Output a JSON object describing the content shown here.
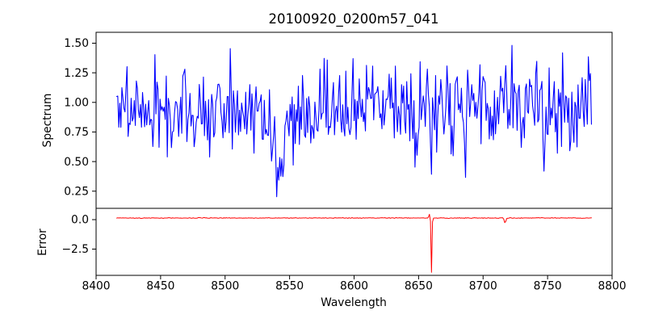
{
  "figure": {
    "title": "20100920_0200m57_041",
    "background": "#ffffff",
    "axis_color": "#000000"
  },
  "chart_data": [
    {
      "id": "spectrum",
      "type": "line",
      "title": "20100920_0200m57_041",
      "ylabel": "Spectrum",
      "color": "#0000ff",
      "legend": "none",
      "grid": false,
      "xlim": [
        8400,
        8800
      ],
      "ylim": [
        0.105,
        1.592
      ],
      "ytick_values": [
        0.25,
        0.5,
        0.75,
        1.0,
        1.25,
        1.5
      ],
      "ytick_labels": [
        "0.25",
        "0.50",
        "0.75",
        "1.00",
        "1.25",
        "1.50"
      ],
      "x_start": 8416,
      "x_end": 8784,
      "n_points": 461,
      "synthesis": {
        "seed": 7,
        "baseline": 0.95,
        "noise_std": 0.175,
        "clip_min": 0.15,
        "clip_max": 1.52,
        "features": [
          {
            "center": 8541,
            "depth": 0.5,
            "width": 3.5,
            "note": "broad noisy absorption dip, minimum ~0.35"
          },
          {
            "center": 8550,
            "depth": 0.1,
            "width": 10,
            "note": "shallow suppressed continuum around the dip"
          },
          {
            "center": 8648,
            "depth": 0.4,
            "width": 1.1,
            "note": "narrow dip to ~0.5"
          },
          {
            "center": 8660,
            "depth": 0.78,
            "width": 0.5,
            "note": "deepest narrow dip to ~0.15"
          },
          {
            "center": 8686,
            "depth": 0.45,
            "width": 1.0,
            "note": "narrow dip to ~0.45"
          },
          {
            "center": 8747,
            "depth": 0.5,
            "width": 1.0,
            "note": "narrow dip to ~0.4"
          }
        ]
      }
    },
    {
      "id": "error",
      "type": "line",
      "ylabel": "Error",
      "xlabel": "Wavelength",
      "color": "#ff0000",
      "legend": "none",
      "grid": false,
      "xlim": [
        8400,
        8800
      ],
      "ylim": [
        -4.73,
        0.96
      ],
      "ytick_values": [
        0,
        -2.5
      ],
      "ytick_labels": [
        "0.0",
        "−2.5"
      ],
      "xtick_values": [
        8400,
        8450,
        8500,
        8550,
        8600,
        8650,
        8700,
        8750,
        8800
      ],
      "xtick_labels": [
        "8400",
        "8450",
        "8500",
        "8550",
        "8600",
        "8650",
        "8700",
        "8750",
        "8800"
      ],
      "x_start": 8416,
      "x_end": 8784,
      "n_points": 461,
      "synthesis": {
        "seed": 99,
        "baseline": 0.14,
        "noise_std": 0.016,
        "clip_min": -5,
        "clip_max": 1,
        "features": [
          {
            "center": 8658.4,
            "depth": -0.3,
            "width": 0.5,
            "note": "small positive blip just before spike"
          },
          {
            "center": 8660,
            "depth": 4.62,
            "width": 0.35,
            "note": "deep narrow spike down to ~-4.5"
          },
          {
            "center": 8717,
            "depth": 0.45,
            "width": 0.6,
            "note": "small dip to ~-0.3"
          }
        ]
      }
    }
  ]
}
